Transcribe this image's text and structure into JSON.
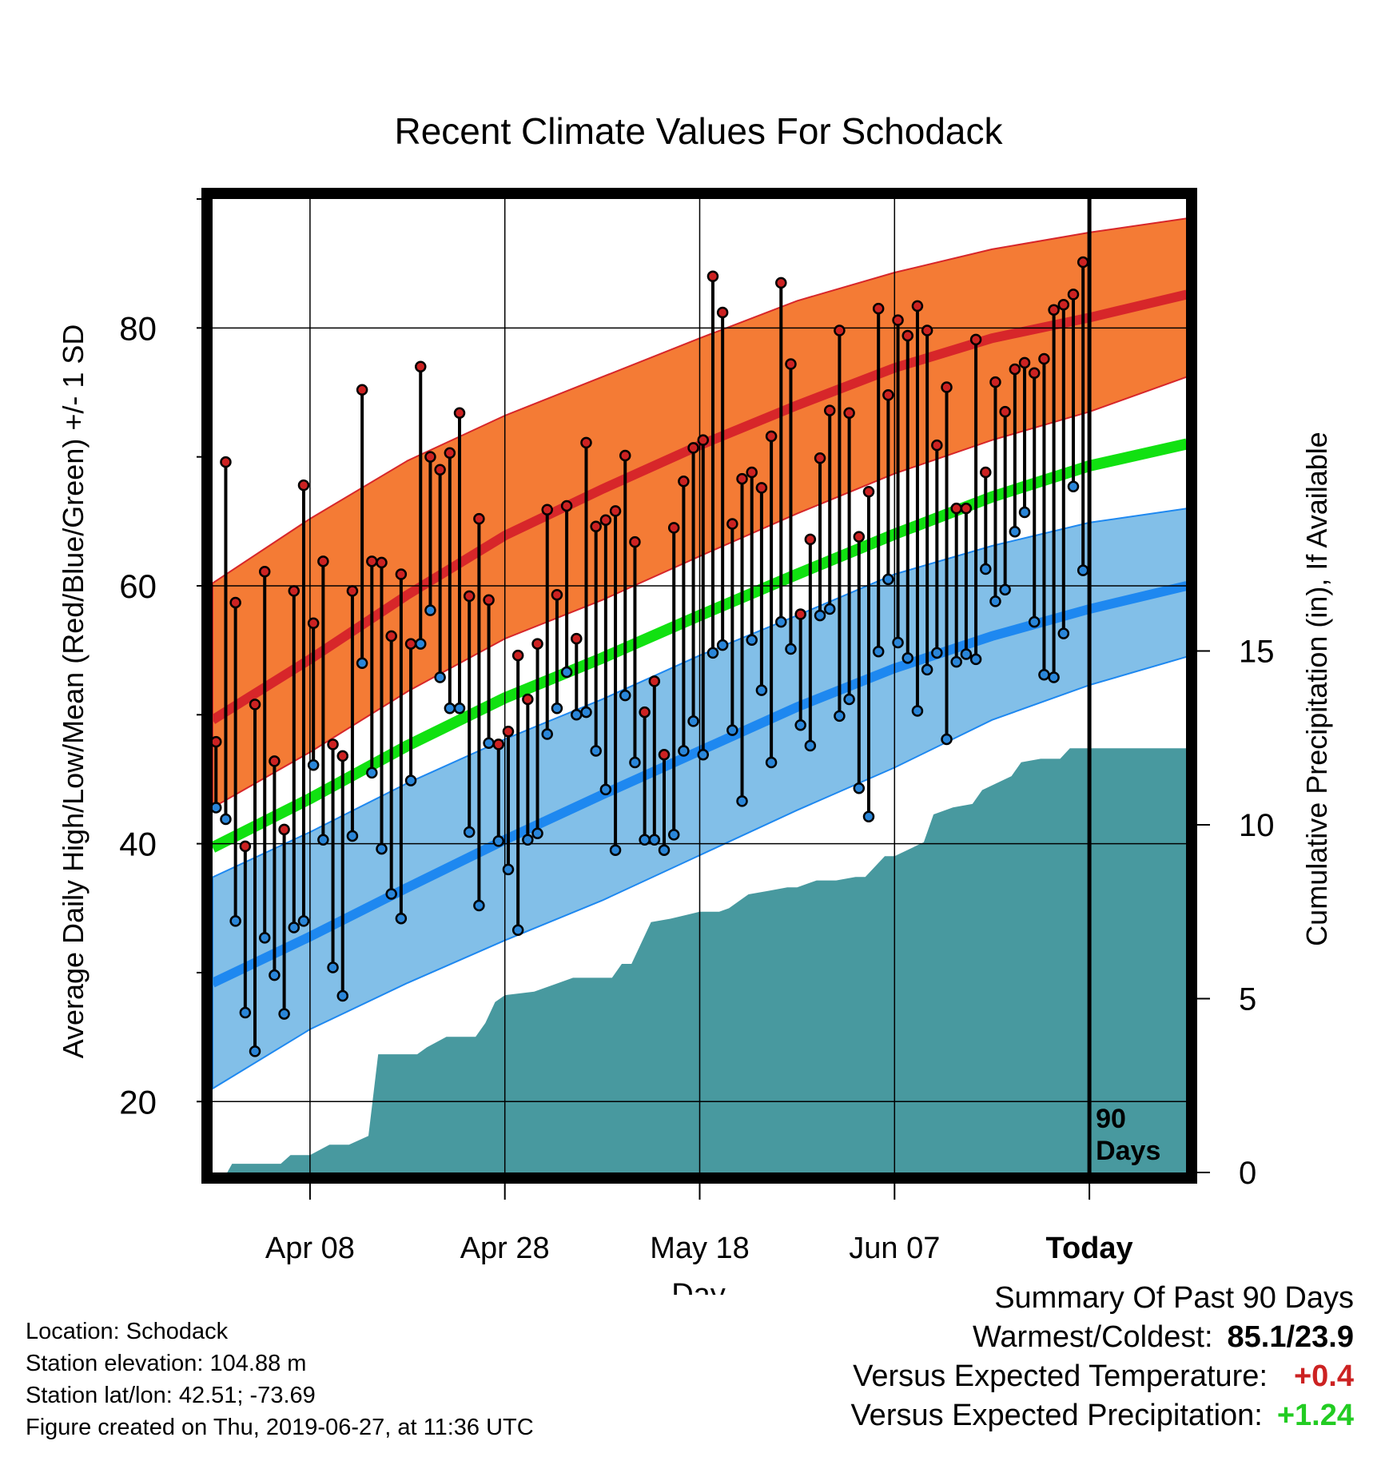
{
  "chart_data": {
    "type": "line",
    "title": "Recent Climate Values For Schodack",
    "xlabel": "Day",
    "ylabel": "Average Daily High/Low/Mean (Red/Blue/Green) +/- 1 SD",
    "y2label": "Cumulative Precipitation (in), If Available",
    "x_unit": "days",
    "xlim": [
      0,
      100
    ],
    "ylim": [
      14.5,
      90
    ],
    "y2lim": [
      0,
      28
    ],
    "x_tick_positions": [
      10,
      30,
      50,
      70,
      90
    ],
    "x_tick_labels": [
      "Apr 08",
      "Apr 28",
      "May 18",
      "Jun 07",
      "Today"
    ],
    "y_ticks": [
      20,
      40,
      60,
      80
    ],
    "y2_ticks": [
      0,
      5,
      10,
      15
    ],
    "today_label": "90\nDays",
    "today_x": 90,
    "grid": true,
    "colors": {
      "high_band": "#f47b35",
      "high_mean": "#d7262a",
      "low_band": "#82bfe8",
      "low_mean": "#1e88f0",
      "mean": "#11e111",
      "precip": "#48999f",
      "dot_high": "#cc2222",
      "dot_low": "#2a86d9"
    },
    "normals": {
      "x": [
        0,
        10,
        20,
        30,
        40,
        50,
        60,
        70,
        80,
        90,
        100
      ],
      "high_mean": [
        49.6,
        54.3,
        59.3,
        63.9,
        67.5,
        70.9,
        74.0,
        76.9,
        79.2,
        80.8,
        82.6
      ],
      "high_upper": [
        60.2,
        65.2,
        69.7,
        73.2,
        76.2,
        79.2,
        82.1,
        84.3,
        86.1,
        87.4,
        88.5
      ],
      "high_lower": [
        42.8,
        47.1,
        51.8,
        55.9,
        58.9,
        62.3,
        65.6,
        68.7,
        71.3,
        73.5,
        76.2
      ],
      "mean": [
        39.7,
        43.5,
        47.6,
        51.3,
        54.4,
        57.7,
        60.9,
        64.0,
        66.9,
        69.3,
        71.0
      ],
      "low_mean": [
        29.2,
        32.8,
        36.6,
        40.3,
        43.8,
        47.2,
        50.6,
        53.6,
        56.1,
        58.2,
        60.0
      ],
      "low_upper": [
        37.4,
        40.9,
        44.7,
        48.1,
        51.2,
        54.6,
        57.7,
        60.9,
        63.1,
        64.9,
        66.0
      ],
      "low_lower": [
        21.0,
        25.6,
        29.2,
        32.5,
        35.6,
        39.1,
        42.6,
        45.9,
        49.6,
        52.3,
        54.5
      ]
    },
    "daily": {
      "x": [
        0,
        1,
        2,
        3,
        4,
        5,
        6,
        7,
        8,
        9,
        10,
        11,
        12,
        13,
        14,
        15,
        16,
        17,
        18,
        19,
        20,
        21,
        22,
        23,
        24,
        25,
        26,
        27,
        28,
        29,
        30,
        31,
        32,
        33,
        34,
        35,
        36,
        37,
        38,
        39,
        40,
        41,
        42,
        43,
        44,
        45,
        46,
        47,
        48,
        49,
        50,
        51,
        52,
        53,
        54,
        55,
        56,
        57,
        58,
        59,
        60,
        61,
        62,
        63,
        64,
        65,
        66,
        67,
        68,
        69,
        70,
        71,
        72,
        73,
        74,
        75,
        76,
        77,
        78,
        79,
        80,
        81,
        82,
        83,
        84,
        85,
        86,
        87,
        88,
        89
      ],
      "high": [
        47.9,
        69.6,
        58.7,
        39.8,
        50.8,
        61.1,
        46.4,
        41.1,
        59.6,
        67.8,
        57.1,
        61.9,
        47.7,
        46.8,
        59.6,
        75.2,
        61.9,
        61.8,
        56.1,
        60.9,
        55.5,
        77.0,
        70.0,
        69.0,
        70.3,
        73.4,
        59.2,
        65.2,
        58.9,
        47.7,
        48.7,
        54.6,
        51.2,
        55.5,
        65.9,
        59.3,
        66.2,
        55.9,
        71.1,
        64.6,
        65.1,
        65.8,
        70.1,
        63.4,
        50.2,
        52.6,
        46.9,
        64.5,
        68.1,
        70.7,
        71.3,
        84.0,
        81.2,
        64.8,
        68.3,
        68.8,
        67.6,
        71.6,
        83.5,
        77.2,
        57.8,
        63.6,
        69.9,
        73.6,
        79.8,
        73.4,
        63.8,
        67.3,
        81.5,
        74.8,
        80.6,
        79.4,
        81.7,
        79.8,
        70.9,
        75.4,
        66.0,
        66.0,
        79.1,
        68.8,
        75.8,
        73.5,
        76.8,
        77.3,
        76.5,
        77.6,
        81.4,
        81.8,
        82.6,
        85.1
      ],
      "low": [
        42.8,
        41.9,
        34.0,
        26.9,
        23.9,
        32.7,
        29.8,
        26.8,
        33.5,
        34.0,
        46.1,
        40.3,
        30.4,
        28.2,
        40.6,
        54.0,
        45.5,
        39.6,
        36.1,
        34.2,
        44.9,
        55.5,
        58.1,
        52.9,
        50.5,
        50.5,
        40.9,
        35.2,
        47.8,
        40.2,
        38.0,
        33.3,
        40.3,
        40.8,
        48.5,
        50.5,
        53.3,
        50.0,
        50.2,
        47.2,
        44.2,
        39.5,
        51.5,
        46.3,
        40.3,
        40.3,
        39.5,
        40.7,
        47.2,
        49.5,
        46.9,
        54.8,
        55.4,
        48.8,
        43.3,
        55.8,
        51.9,
        46.3,
        57.2,
        55.1,
        49.2,
        47.6,
        57.7,
        58.2,
        49.9,
        51.2,
        44.3,
        42.1,
        54.9,
        60.5,
        55.6,
        54.4,
        50.3,
        53.5,
        54.8,
        48.1,
        54.1,
        54.7,
        54.3,
        61.3,
        58.8,
        59.7,
        64.2,
        65.7,
        57.2,
        53.1,
        52.9,
        56.3,
        67.7,
        61.2
      ]
    },
    "precip": {
      "x": [
        0,
        1.5,
        2,
        7,
        8,
        10,
        11,
        12,
        14,
        16,
        17,
        21,
        22,
        24,
        27,
        28,
        29,
        30,
        33,
        35,
        37,
        41,
        42,
        43,
        45,
        47,
        50,
        52,
        53,
        55,
        57,
        59,
        60,
        62,
        64,
        66,
        67,
        69,
        70,
        73,
        74,
        76,
        78,
        79,
        82,
        83,
        85,
        87,
        88,
        89,
        90,
        100
      ],
      "values": [
        0,
        0,
        0.25,
        0.25,
        0.5,
        0.5,
        0.65,
        0.8,
        0.8,
        1.05,
        3.4,
        3.4,
        3.6,
        3.9,
        3.9,
        4.3,
        4.9,
        5.1,
        5.2,
        5.4,
        5.6,
        5.6,
        6.0,
        6.0,
        7.2,
        7.3,
        7.5,
        7.5,
        7.6,
        8.0,
        8.1,
        8.2,
        8.2,
        8.4,
        8.4,
        8.5,
        8.5,
        9.1,
        9.1,
        9.5,
        10.3,
        10.5,
        10.6,
        11.0,
        11.4,
        11.8,
        11.9,
        11.9,
        12.2,
        12.2,
        12.2,
        12.2
      ]
    }
  },
  "meta": {
    "location": "Location: Schodack",
    "elevation": "Station elevation: 104.88 m",
    "latlon": "Station lat/lon: 42.51; -73.69",
    "created": "Figure created on Thu, 2019-06-27, at 11:36 UTC"
  },
  "summary": {
    "heading": "Summary Of Past 90 Days",
    "warm_cold_label": "Warmest/Coldest:",
    "warm_cold_value": "85.1/23.9",
    "temp_label": "Versus Expected Temperature:",
    "temp_value": "+0.4",
    "temp_color": "#cc2222",
    "precip_label": "Versus Expected Precipitation:",
    "precip_value": "+1.24",
    "precip_color": "#22cc22"
  }
}
